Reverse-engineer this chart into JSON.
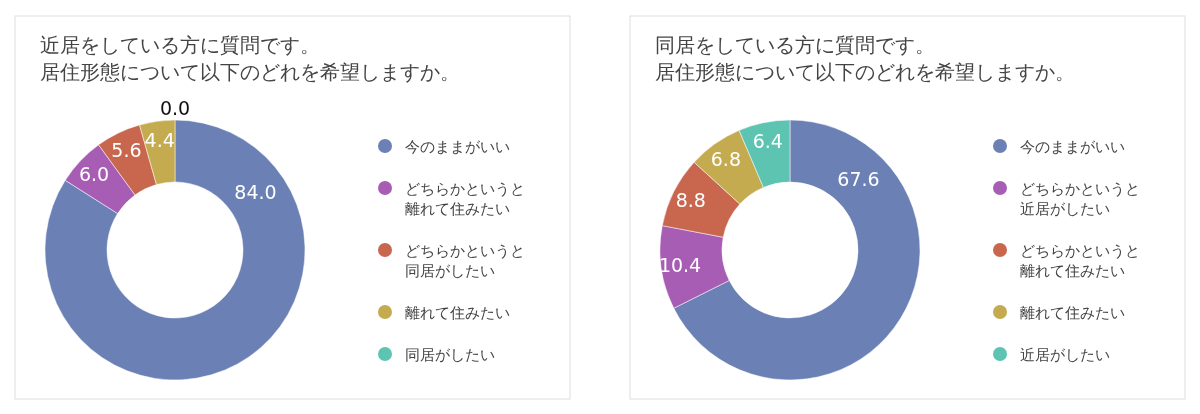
{
  "chart_data": [
    {
      "type": "donut",
      "title": "近居をしている方に質問です。居住形態について以下のどれを希望しますか。",
      "categories": [
        "今のままがいい",
        "どちらかというと離れて住みたい",
        "どちらかというと同居がしたい",
        "離れて住みたい",
        "同居がしたい"
      ],
      "values": [
        84.0,
        6.0,
        5.6,
        4.4,
        0.0
      ],
      "value_labels": [
        "84.0",
        "6.0",
        "5.6",
        "4.4",
        "0.0"
      ],
      "colors": [
        "#6b80b4",
        "#a85db5",
        "#c8674e",
        "#c4ab4f",
        "#5ec4b2"
      ],
      "legend": "right"
    },
    {
      "type": "donut",
      "title": "同居をしている方に質問です。居住形態について以下のどれを希望しますか。",
      "categories": [
        "今のままがいい",
        "どちらかというと近居がしたい",
        "どちらかというと離れて住みたい",
        "離れて住みたい",
        "近居がしたい"
      ],
      "values": [
        67.6,
        10.4,
        8.8,
        6.8,
        6.4
      ],
      "value_labels": [
        "67.6",
        "10.4",
        "8.8",
        "6.8",
        "6.4"
      ],
      "colors": [
        "#6b80b4",
        "#a85db5",
        "#c8674e",
        "#c4ab4f",
        "#5ec4b2"
      ],
      "legend": "right"
    }
  ]
}
